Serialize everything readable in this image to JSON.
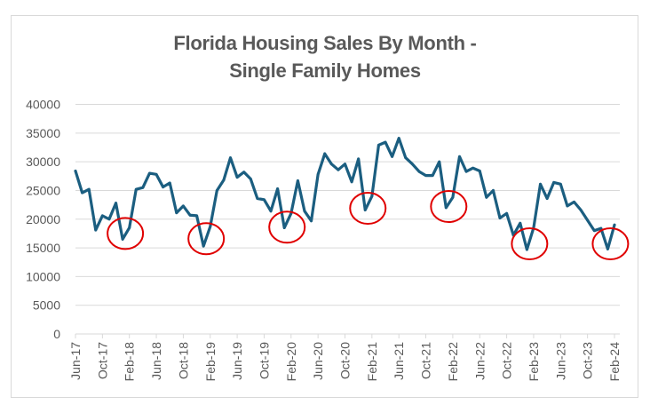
{
  "chart_data": {
    "type": "line",
    "title": [
      "Florida Housing Sales By Month -",
      "Single Family Homes"
    ],
    "xlabel": "",
    "ylabel": "",
    "ylim": [
      0,
      40000
    ],
    "yticks": [
      0,
      5000,
      10000,
      15000,
      20000,
      25000,
      30000,
      35000,
      40000
    ],
    "ytick_labels": [
      "0",
      "5000",
      "10000",
      "15000",
      "20000",
      "25000",
      "30000",
      "35000",
      "40000"
    ],
    "grid": true,
    "legend": "none",
    "x_start": "Jun-17",
    "x_end": "Feb-24",
    "xtick_every_months": 4,
    "xtick_labels": [
      "Jun-17",
      "Oct-17",
      "Feb-18",
      "Jun-18",
      "Oct-18",
      "Feb-19",
      "Jun-19",
      "Oct-19",
      "Feb-20",
      "Jun-20",
      "Oct-20",
      "Feb-21",
      "Jun-21",
      "Oct-21",
      "Feb-22",
      "Jun-22",
      "Oct-22",
      "Feb-23",
      "Jun-23",
      "Oct-23",
      "Feb-24"
    ],
    "series": [
      {
        "name": "Single Family Homes Sales",
        "color": "#1B5E80",
        "x": [
          "Jun-17",
          "Jul-17",
          "Aug-17",
          "Sep-17",
          "Oct-17",
          "Nov-17",
          "Dec-17",
          "Jan-18",
          "Feb-18",
          "Mar-18",
          "Apr-18",
          "May-18",
          "Jun-18",
          "Jul-18",
          "Aug-18",
          "Sep-18",
          "Oct-18",
          "Nov-18",
          "Dec-18",
          "Jan-19",
          "Feb-19",
          "Mar-19",
          "Apr-19",
          "May-19",
          "Jun-19",
          "Jul-19",
          "Aug-19",
          "Sep-19",
          "Oct-19",
          "Nov-19",
          "Dec-19",
          "Jan-20",
          "Feb-20",
          "Mar-20",
          "Apr-20",
          "May-20",
          "Jun-20",
          "Jul-20",
          "Aug-20",
          "Sep-20",
          "Oct-20",
          "Nov-20",
          "Dec-20",
          "Jan-21",
          "Feb-21",
          "Mar-21",
          "Apr-21",
          "May-21",
          "Jun-21",
          "Jul-21",
          "Aug-21",
          "Sep-21",
          "Oct-21",
          "Nov-21",
          "Dec-21",
          "Jan-22",
          "Feb-22",
          "Mar-22",
          "Apr-22",
          "May-22",
          "Jun-22",
          "Jul-22",
          "Aug-22",
          "Sep-22",
          "Oct-22",
          "Nov-22",
          "Dec-22",
          "Jan-23",
          "Feb-23",
          "Mar-23",
          "Apr-23",
          "May-23",
          "Jun-23",
          "Jul-23",
          "Aug-23",
          "Sep-23",
          "Oct-23",
          "Nov-23",
          "Dec-23",
          "Jan-24",
          "Feb-24"
        ],
        "values": [
          28400,
          24600,
          25200,
          18100,
          20600,
          20000,
          22800,
          16500,
          18500,
          25200,
          25500,
          28000,
          27800,
          25600,
          26300,
          21100,
          22300,
          20700,
          20600,
          15300,
          18700,
          25000,
          26800,
          30700,
          27300,
          28200,
          27000,
          23600,
          23400,
          21400,
          25300,
          18500,
          21000,
          26700,
          21400,
          19700,
          27800,
          31400,
          29600,
          28600,
          29600,
          26500,
          30500,
          21600,
          24000,
          32900,
          33400,
          30900,
          34100,
          30700,
          29600,
          28300,
          27600,
          27600,
          30000,
          22000,
          23800,
          30900,
          28300,
          28900,
          28400,
          23800,
          25000,
          20200,
          21000,
          17200,
          19300,
          14700,
          18500,
          26100,
          23600,
          26400,
          26100,
          22300,
          23000,
          21600,
          19800,
          18000,
          18400,
          14800,
          19000
        ]
      }
    ],
    "annotations": [
      {
        "type": "circle",
        "color": "#E00000",
        "around": "Jan-18",
        "center_value": 17500
      },
      {
        "type": "circle",
        "color": "#E00000",
        "around": "Jan-19",
        "center_value": 16600
      },
      {
        "type": "circle",
        "color": "#E00000",
        "around": "Jan-20",
        "center_value": 18600
      },
      {
        "type": "circle",
        "color": "#E00000",
        "around": "Jan-21",
        "center_value": 21900
      },
      {
        "type": "circle",
        "color": "#E00000",
        "around": "Jan-22",
        "center_value": 22200
      },
      {
        "type": "circle",
        "color": "#E00000",
        "around": "Jan-23",
        "center_value": 15700
      },
      {
        "type": "circle",
        "color": "#E00000",
        "around": "Jan-24",
        "center_value": 15700
      }
    ]
  }
}
